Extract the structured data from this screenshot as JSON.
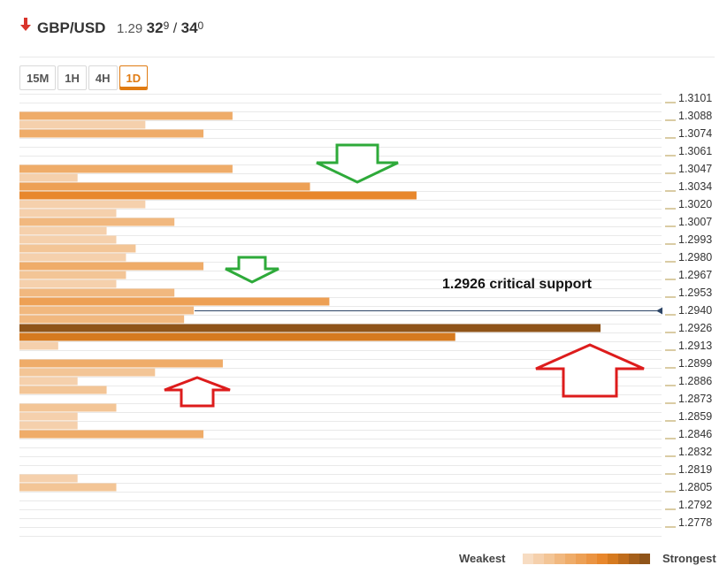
{
  "header": {
    "pair": "GBP/USD",
    "price_lo": "1.29",
    "price_big": "32",
    "price_sup": "9",
    "separator": "/",
    "price_big2": "34",
    "price_sup2": "0",
    "direction": "down"
  },
  "tabs": [
    {
      "label": "15M",
      "active": false
    },
    {
      "label": "1H",
      "active": false
    },
    {
      "label": "4H",
      "active": false
    },
    {
      "label": "1D",
      "active": true
    }
  ],
  "legend": {
    "weakest": "Weakest",
    "strongest": "Strongest",
    "scale_colors": [
      "#f7dcc2",
      "#f5d0ac",
      "#f3c596",
      "#f1b87f",
      "#efac69",
      "#eda055",
      "#eb9442",
      "#e8872c",
      "#d67a1f",
      "#bf6c1c",
      "#a55f1b",
      "#8f5419"
    ]
  },
  "chart_data": {
    "type": "bar",
    "orientation": "horizontal",
    "y_ticks": [
      "1.3101",
      "1.3088",
      "1.3074",
      "1.3061",
      "1.3047",
      "1.3034",
      "1.3020",
      "1.3007",
      "1.2993",
      "1.2980",
      "1.2967",
      "1.2953",
      "1.2940",
      "1.2926",
      "1.2913",
      "1.2899",
      "1.2886",
      "1.2873",
      "1.2859",
      "1.2846",
      "1.2832",
      "1.2819",
      "1.2805",
      "1.2792",
      "1.2778"
    ],
    "row_count": 50,
    "x_max": 100,
    "current_price": 1.294,
    "bars": [
      {
        "row": 2,
        "value": 33,
        "strength": 4
      },
      {
        "row": 3,
        "value": 19.5,
        "strength": 1
      },
      {
        "row": 4,
        "value": 28.5,
        "strength": 4
      },
      {
        "row": 8,
        "value": 33,
        "strength": 4
      },
      {
        "row": 9,
        "value": 9,
        "strength": 1
      },
      {
        "row": 10,
        "value": 45,
        "strength": 5
      },
      {
        "row": 11,
        "value": 61.5,
        "strength": 7
      },
      {
        "row": 12,
        "value": 19.5,
        "strength": 1
      },
      {
        "row": 13,
        "value": 15,
        "strength": 1
      },
      {
        "row": 14,
        "value": 24,
        "strength": 3
      },
      {
        "row": 15,
        "value": 13.5,
        "strength": 1
      },
      {
        "row": 16,
        "value": 15,
        "strength": 1
      },
      {
        "row": 17,
        "value": 18,
        "strength": 2
      },
      {
        "row": 18,
        "value": 16.5,
        "strength": 1
      },
      {
        "row": 19,
        "value": 28.5,
        "strength": 4
      },
      {
        "row": 20,
        "value": 16.5,
        "strength": 2
      },
      {
        "row": 21,
        "value": 15,
        "strength": 1
      },
      {
        "row": 22,
        "value": 24,
        "strength": 3
      },
      {
        "row": 23,
        "value": 48,
        "strength": 5
      },
      {
        "row": 24,
        "value": 27,
        "strength": 3
      },
      {
        "row": 25,
        "value": 25.5,
        "strength": 3
      },
      {
        "row": 26,
        "value": 90,
        "strength": 11
      },
      {
        "row": 27,
        "value": 67.5,
        "strength": 8
      },
      {
        "row": 28,
        "value": 6,
        "strength": 1
      },
      {
        "row": 30,
        "value": 31.5,
        "strength": 4
      },
      {
        "row": 31,
        "value": 21,
        "strength": 2
      },
      {
        "row": 32,
        "value": 9,
        "strength": 1
      },
      {
        "row": 33,
        "value": 13.5,
        "strength": 2
      },
      {
        "row": 35,
        "value": 15,
        "strength": 2
      },
      {
        "row": 36,
        "value": 9,
        "strength": 1
      },
      {
        "row": 37,
        "value": 9,
        "strength": 1
      },
      {
        "row": 38,
        "value": 28.5,
        "strength": 4
      },
      {
        "row": 43,
        "value": 9,
        "strength": 1
      },
      {
        "row": 44,
        "value": 15,
        "strength": 2
      }
    ],
    "annotations": [
      {
        "text": "1.2926 critical support"
      }
    ],
    "markers": [
      {
        "kind": "down-arrow",
        "color": "#2eaa3a",
        "near_price": 1.3047
      },
      {
        "kind": "down-arrow",
        "color": "#2eaa3a",
        "near_price": 1.2967
      },
      {
        "kind": "up-arrow",
        "color": "#dd1c1c",
        "near_price": 1.2886
      },
      {
        "kind": "up-arrow",
        "color": "#dd1c1c",
        "near_price": 1.2899
      }
    ]
  }
}
